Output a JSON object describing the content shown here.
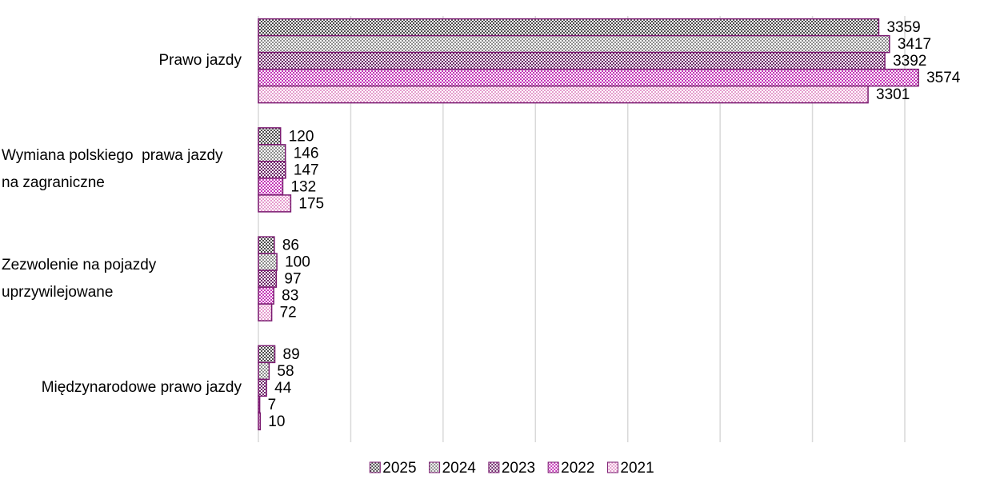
{
  "chart_data": {
    "type": "bar",
    "orientation": "horizontal",
    "categories": [
      "Prawo jazdy",
      "Wymiana polskiego  prawa jazdy na zagraniczne",
      "Zezwolenie na pojazdy uprzywilejowane",
      "Międzynarodowe prawo jazdy"
    ],
    "series": [
      {
        "name": "2025",
        "color": "#4d4d4d",
        "values": [
          3359,
          120,
          86,
          89
        ]
      },
      {
        "name": "2024",
        "color": "#8c8c8c",
        "values": [
          3417,
          146,
          100,
          58
        ]
      },
      {
        "name": "2023",
        "color": "#6e2a6a",
        "values": [
          3392,
          147,
          97,
          44
        ]
      },
      {
        "name": "2022",
        "color": "#c436b8",
        "values": [
          3574,
          132,
          83,
          7
        ]
      },
      {
        "name": "2021",
        "color": "#e59ccd",
        "values": [
          3301,
          175,
          72,
          10
        ]
      }
    ],
    "xlim": [
      0,
      3500
    ],
    "xticks": [
      0,
      500,
      1000,
      1500,
      2000,
      2500,
      3000,
      3500
    ],
    "grid": true,
    "legend": "bottom"
  }
}
